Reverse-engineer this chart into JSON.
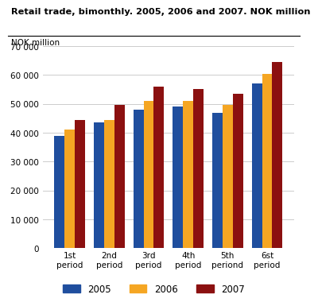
{
  "title": "Retail trade, bimonthly. 2005, 2006 and 2007. NOK million",
  "ylabel_text": "NOK million",
  "categories": [
    "1st\nperiod",
    "2nd\nperiod",
    "3rd\nperiod",
    "4th\nperiod",
    "5th\nperiond",
    "6st\nperiod"
  ],
  "series": {
    "2005": [
      39000,
      43500,
      48000,
      49000,
      47000,
      57000
    ],
    "2006": [
      41000,
      44500,
      51000,
      51000,
      49500,
      60500
    ],
    "2007": [
      44500,
      49500,
      56000,
      55000,
      53500,
      64500
    ]
  },
  "colors": {
    "2005": "#1f4e9e",
    "2006": "#f5a623",
    "2007": "#8b1010"
  },
  "ylim": [
    0,
    70000
  ],
  "yticks": [
    0,
    10000,
    20000,
    30000,
    40000,
    50000,
    60000,
    70000
  ],
  "legend_labels": [
    "2005",
    "2006",
    "2007"
  ],
  "background_color": "#ffffff",
  "grid_color": "#cccccc",
  "bar_width": 0.26
}
